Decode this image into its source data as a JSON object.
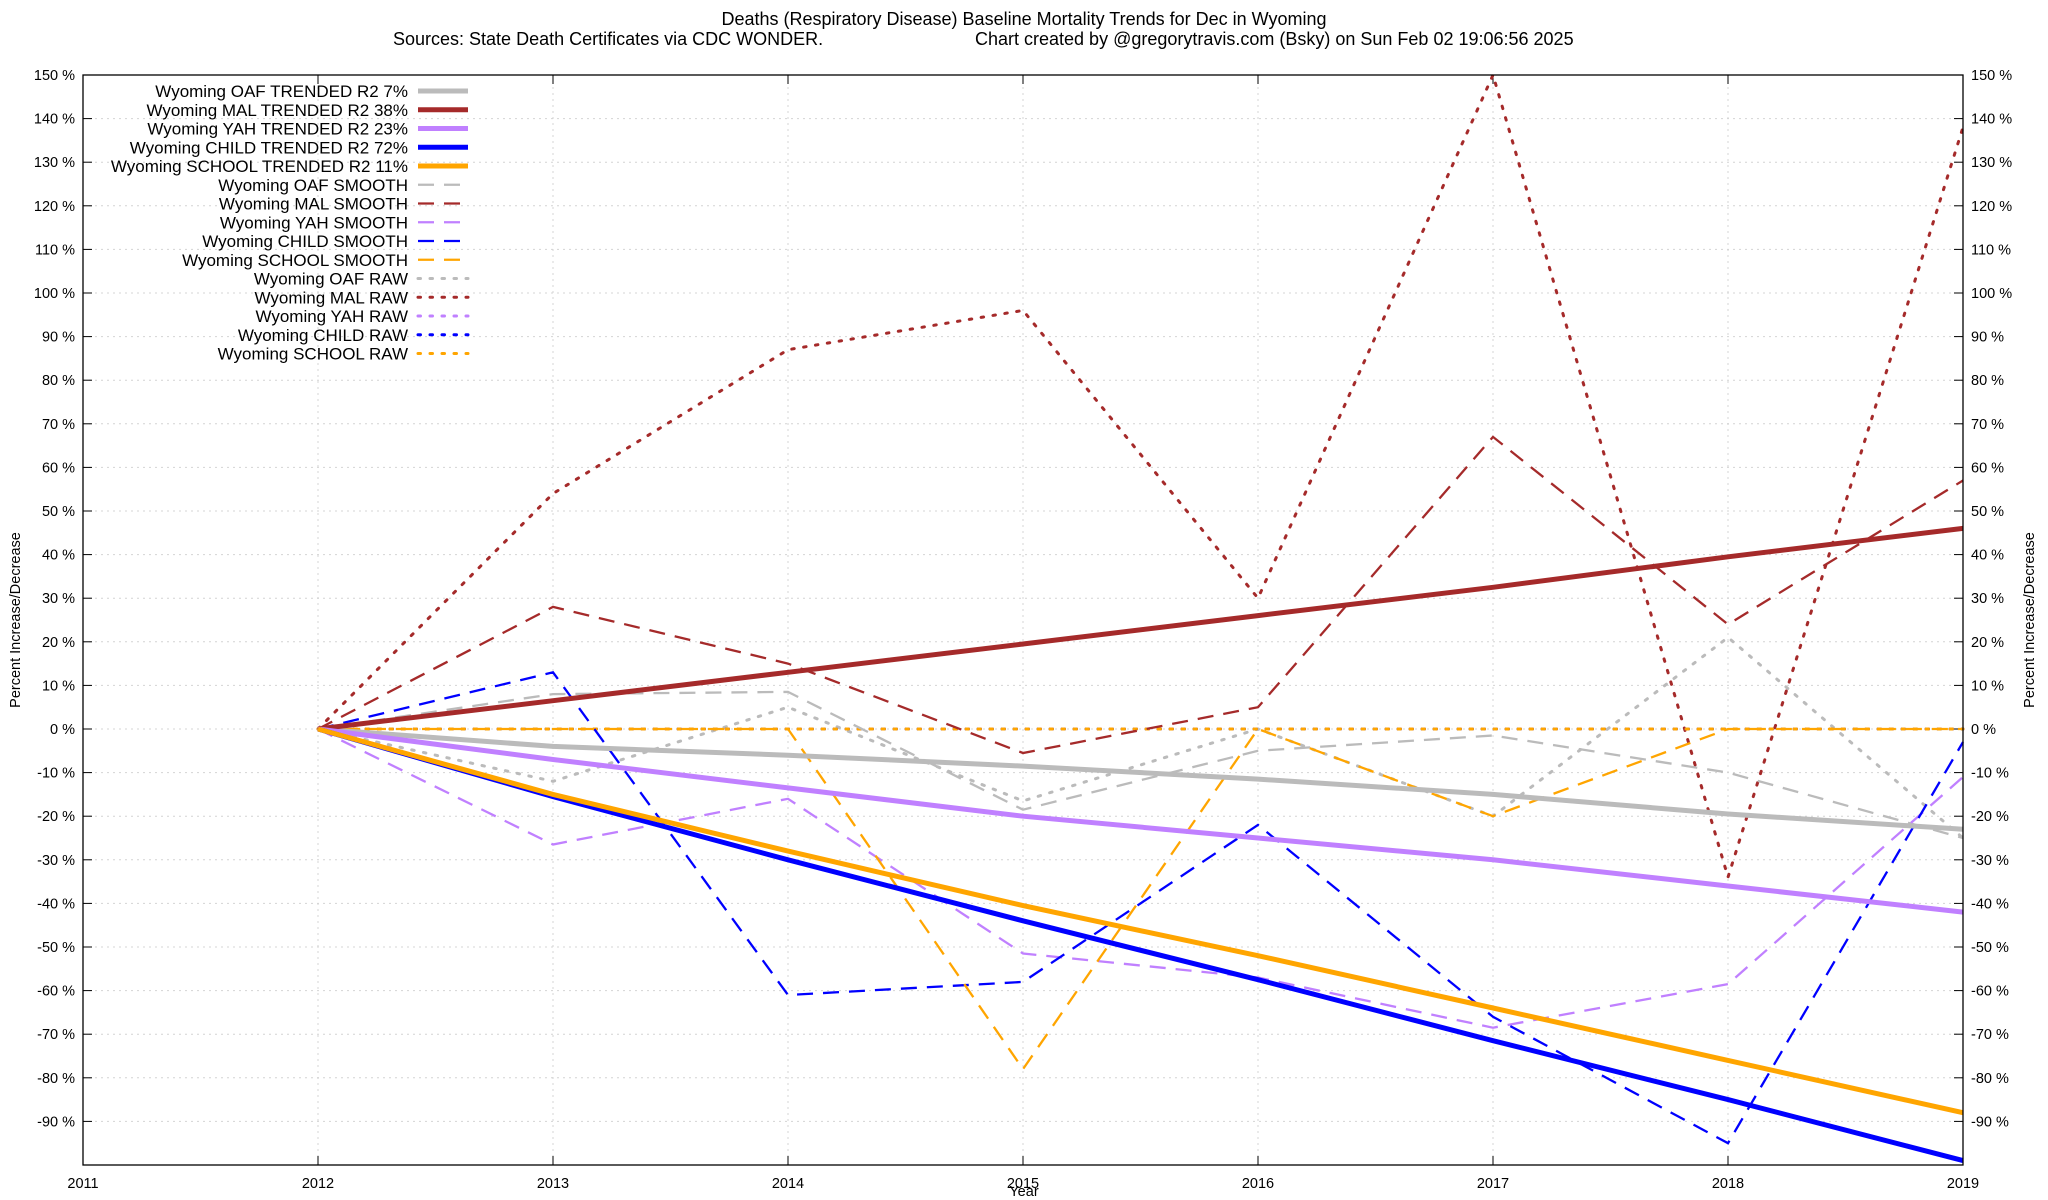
{
  "chart_data": {
    "type": "line",
    "title_line1": "Deaths (Respiratory Disease)  Baseline Mortality Trends for Dec in Wyoming",
    "title_line2_left": "Sources: State Death Certificates via CDC WONDER.",
    "title_line2_right": "Chart created by @gregorytravis.com (Bsky) on Sun Feb 02 19:06:56 2025",
    "xlabel": "Year",
    "ylabel_left": "Percent Increase/Decrease",
    "ylabel_right": "Percent Increase/Decrease",
    "xlim": [
      2011,
      2019
    ],
    "ylim": [
      -100,
      150
    ],
    "x_ticks": [
      "2011",
      "2012",
      "2013",
      "2014",
      "2015",
      "2016",
      "2017",
      "2018",
      "2019"
    ],
    "y_ticks": [
      "150 %",
      "140 %",
      "130 %",
      "120 %",
      "110 %",
      "100 %",
      "90 %",
      "80 %",
      "70 %",
      "60 %",
      "50 %",
      "40 %",
      "30 %",
      "20 %",
      "10 %",
      "0 %",
      "-10 %",
      "-20 %",
      "-30 %",
      "-40 %",
      "-50 %",
      "-60 %",
      "-70 %",
      "-80 %",
      "-90 %"
    ],
    "grid": true,
    "legend_position": "top-left",
    "x": [
      2012,
      2013,
      2014,
      2015,
      2016,
      2017,
      2018,
      2019
    ],
    "series": [
      {
        "name": "Wyoming OAF TRENDED R2  7%",
        "style": "trend",
        "color": "#bbbbbb",
        "values": [
          0,
          -4,
          -6,
          -8.5,
          -11.5,
          -15,
          -19.5,
          -23
        ]
      },
      {
        "name": "Wyoming MAL TRENDED R2  38%",
        "style": "trend",
        "color": "#a52a2a",
        "values": [
          0,
          6.5,
          13,
          19.5,
          26,
          32.5,
          39.5,
          46
        ]
      },
      {
        "name": "Wyoming YAH TRENDED R2  23%",
        "style": "trend",
        "color": "#c080ff",
        "values": [
          0,
          -7,
          -13.5,
          -20,
          -25,
          -30,
          -36,
          -42
        ]
      },
      {
        "name": "Wyoming CHILD TRENDED R2  72%",
        "style": "trend",
        "color": "#0000ff",
        "values": [
          0,
          -15.5,
          -30,
          -44,
          -57.5,
          -71.5,
          -85,
          -99
        ]
      },
      {
        "name": "Wyoming SCHOOL TRENDED R2  11%",
        "style": "trend",
        "color": "#ffa500",
        "values": [
          0,
          -15,
          -28,
          -40.5,
          -52,
          -64,
          -76,
          -88
        ]
      },
      {
        "name": "Wyoming OAF SMOOTH",
        "style": "smooth",
        "color": "#bbbbbb",
        "values": [
          0,
          8,
          8.5,
          -18.5,
          -5,
          -1.5,
          -10,
          -25
        ]
      },
      {
        "name": "Wyoming MAL SMOOTH",
        "style": "smooth",
        "color": "#a52a2a",
        "values": [
          0,
          28,
          15,
          -5.5,
          5,
          67,
          24,
          57
        ]
      },
      {
        "name": "Wyoming YAH SMOOTH",
        "style": "smooth",
        "color": "#c080ff",
        "values": [
          0,
          -26.5,
          -16,
          -51.5,
          -57,
          -68.5,
          -58.5,
          -11
        ]
      },
      {
        "name": "Wyoming CHILD SMOOTH",
        "style": "smooth",
        "color": "#0000ff",
        "values": [
          0,
          13,
          -61,
          -58,
          -22,
          -66,
          -95,
          -3
        ]
      },
      {
        "name": "Wyoming SCHOOL SMOOTH",
        "style": "smooth",
        "color": "#ffa500",
        "values": [
          0,
          0,
          0,
          -78,
          0,
          -20,
          0,
          0
        ]
      },
      {
        "name": "Wyoming OAF RAW",
        "style": "raw",
        "color": "#bbbbbb",
        "values": [
          0,
          -12,
          5,
          -16.5,
          0,
          -20,
          21,
          -25
        ]
      },
      {
        "name": "Wyoming MAL RAW",
        "style": "raw",
        "color": "#a52a2a",
        "values": [
          0,
          54,
          87,
          96,
          30,
          150,
          -34,
          138
        ]
      },
      {
        "name": "Wyoming YAH RAW",
        "style": "raw",
        "color": "#c080ff",
        "values": [
          0,
          0,
          0,
          0,
          0,
          0,
          0,
          0
        ]
      },
      {
        "name": "Wyoming CHILD RAW",
        "style": "raw",
        "color": "#0000ff",
        "values": [
          0,
          0,
          0,
          0,
          0,
          0,
          0,
          0
        ]
      },
      {
        "name": "Wyoming SCHOOL RAW",
        "style": "raw",
        "color": "#ffa500",
        "values": [
          0,
          0,
          0,
          0,
          0,
          0,
          0,
          0
        ]
      }
    ]
  }
}
